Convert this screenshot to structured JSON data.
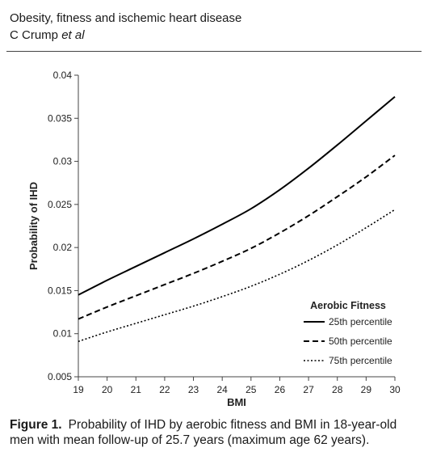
{
  "header": {
    "title": "Obesity, fitness and ischemic heart disease",
    "authors_plain": "C Crump ",
    "authors_italic": "et al"
  },
  "chart_data": {
    "type": "line",
    "xlabel": "BMI",
    "ylabel": "Probability of IHD",
    "xlim": [
      19,
      30
    ],
    "ylim": [
      0.005,
      0.04
    ],
    "x_ticks": [
      19,
      20,
      21,
      22,
      23,
      24,
      25,
      26,
      27,
      28,
      29,
      30
    ],
    "y_ticks": [
      "0.005",
      "0.01",
      "0.015",
      "0.02",
      "0.025",
      "0.03",
      "0.035",
      "0.04"
    ],
    "legend_title": "Aerobic Fitness",
    "legend_position": "bottom-right",
    "grid": false,
    "x": [
      19,
      20,
      21,
      22,
      23,
      24,
      25,
      26,
      27,
      28,
      29,
      30
    ],
    "series": [
      {
        "name": "25th percentile",
        "style": "solid",
        "values": [
          0.0145,
          0.0162,
          0.0178,
          0.0194,
          0.021,
          0.0227,
          0.0245,
          0.0267,
          0.0292,
          0.0319,
          0.0347,
          0.0375
        ]
      },
      {
        "name": "50th percentile",
        "style": "dashed",
        "values": [
          0.0117,
          0.0131,
          0.0144,
          0.0157,
          0.017,
          0.0184,
          0.0199,
          0.0217,
          0.0237,
          0.0259,
          0.0282,
          0.0307
        ]
      },
      {
        "name": "75th percentile",
        "style": "dotted",
        "values": [
          0.0091,
          0.0102,
          0.0112,
          0.0122,
          0.0132,
          0.0143,
          0.0155,
          0.0169,
          0.0185,
          0.0203,
          0.0223,
          0.0244
        ]
      }
    ]
  },
  "caption": {
    "label": "Figure 1.",
    "text": "Probability of IHD by aerobic fitness and BMI in 18-year-old men with mean follow-up of 25.7 years (maximum age 62 years)."
  },
  "colors": {
    "line": "#000000",
    "axis": "#444444"
  }
}
